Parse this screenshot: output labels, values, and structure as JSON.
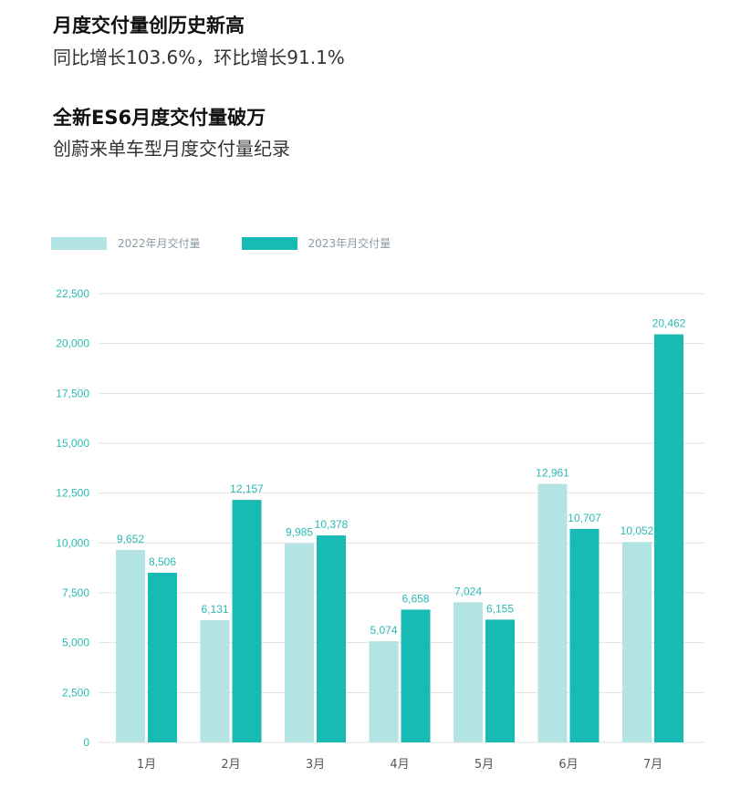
{
  "header": {
    "title1": "月度交付量创历史新高",
    "subtitle1": "同比增长103.6%，环比增长91.1%",
    "title2": "全新ES6月度交付量破万",
    "subtitle2": "创蔚来单车型月度交付量纪录"
  },
  "colors": {
    "series_2022": "#b3e3e3",
    "series_2023": "#18bab4",
    "tick_text": "#2bbab4",
    "grid": "#e3e3e3"
  },
  "chart_data": {
    "type": "bar",
    "categories": [
      "1月",
      "2月",
      "3月",
      "4月",
      "5月",
      "6月",
      "7月"
    ],
    "series": [
      {
        "name": "2022年月交付量",
        "values": [
          9652,
          6131,
          9985,
          5074,
          7024,
          12961,
          10052
        ],
        "labels": [
          "9,652",
          "6,131",
          "9,985",
          "5,074",
          "7,024",
          "12,961",
          "10,052"
        ]
      },
      {
        "name": "2023年月交付量",
        "values": [
          8506,
          12157,
          10378,
          6658,
          6155,
          10707,
          20462
        ],
        "labels": [
          "8,506",
          "12,157",
          "10,378",
          "6,658",
          "6,155",
          "10,707",
          "20,462"
        ]
      }
    ],
    "yticks": [
      0,
      2500,
      5000,
      7500,
      10000,
      12500,
      15000,
      17500,
      20000,
      22500
    ],
    "ytick_labels": [
      "0",
      "2,500",
      "5,000",
      "7,500",
      "10,000",
      "12,500",
      "15,000",
      "17,500",
      "20,000",
      "22,500"
    ],
    "ylim": [
      0,
      22500
    ],
    "grid": true,
    "legend_position": "top-left"
  }
}
